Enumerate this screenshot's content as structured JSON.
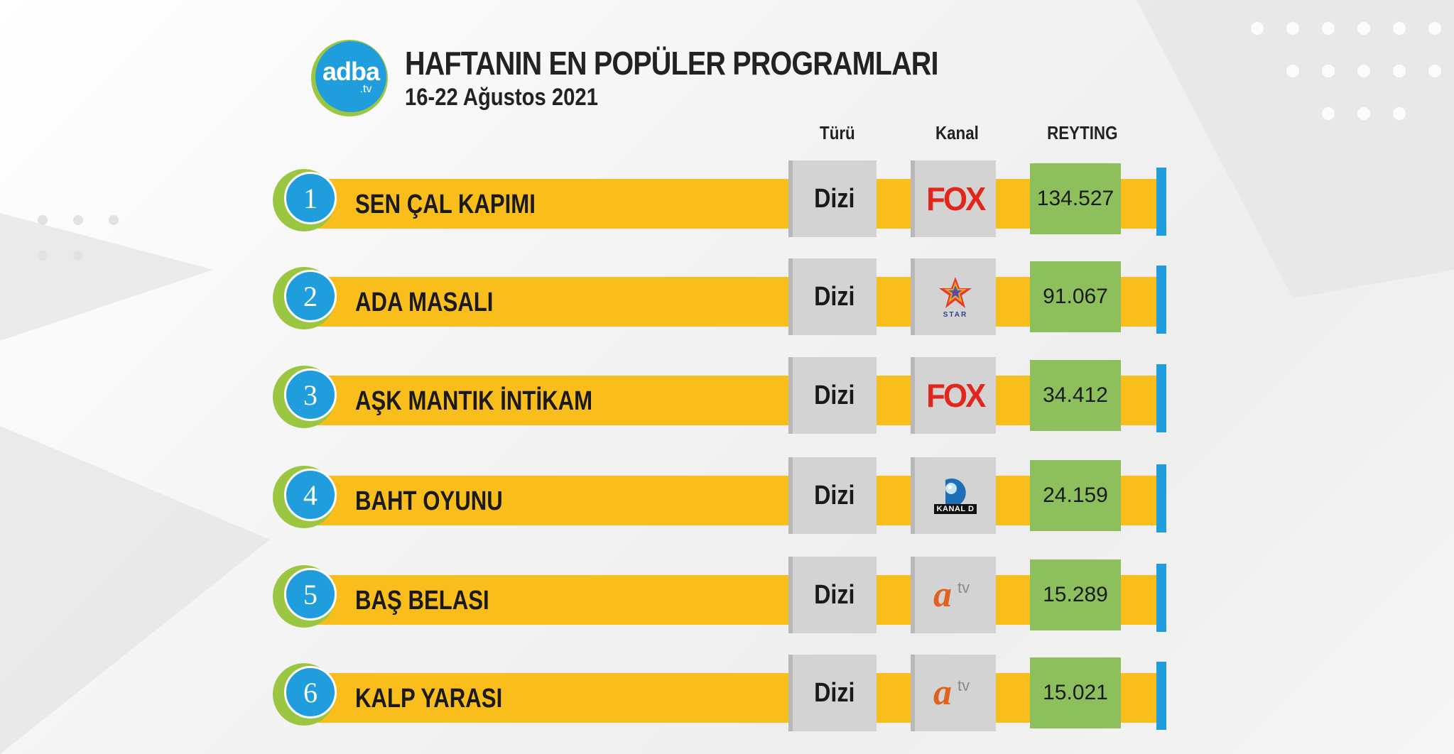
{
  "header": {
    "logo_text": "adba",
    "logo_sub": ".tv",
    "title": "HAFTANIN EN POPÜLER PROGRAMLARI",
    "subtitle": "16-22 Ağustos 2021"
  },
  "columns": {
    "type": "Türü",
    "channel": "Kanal",
    "rating": "REYTING"
  },
  "rows": [
    {
      "rank": "1",
      "name": "SEN ÇAL KAPIMI",
      "type": "Dizi",
      "channel": "FOX",
      "channel_icon": "fox-logo",
      "rating": "134.527"
    },
    {
      "rank": "2",
      "name": "ADA MASALI",
      "type": "Dizi",
      "channel": "STAR",
      "channel_icon": "star-tv-logo",
      "rating": "91.067"
    },
    {
      "rank": "3",
      "name": "AŞK MANTIK İNTİKAM",
      "type": "Dizi",
      "channel": "FOX",
      "channel_icon": "fox-logo",
      "rating": "34.412"
    },
    {
      "rank": "4",
      "name": "BAHT OYUNU",
      "type": "Dizi",
      "channel": "KANAL D",
      "channel_icon": "kanal-d-logo",
      "rating": "24.159"
    },
    {
      "rank": "5",
      "name": "BAŞ BELASI",
      "type": "Dizi",
      "channel": "atv",
      "channel_icon": "atv-logo",
      "rating": "15.289"
    },
    {
      "rank": "6",
      "name": "KALP YARASI",
      "type": "Dizi",
      "channel": "atv",
      "channel_icon": "atv-logo",
      "rating": "15.021"
    }
  ],
  "colors": {
    "bar": "#f9bd1c",
    "rank_circle": "#1f9ddc",
    "rank_ring": "#9bc642",
    "rating_box": "#8dc05c",
    "box_grey": "#d3d3d3",
    "fox_red": "#e1261c",
    "atv_orange": "#e1621c"
  }
}
